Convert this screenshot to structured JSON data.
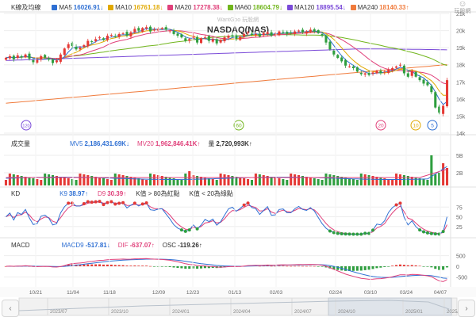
{
  "chart_data": {
    "type": "candlestick",
    "title": "NASDAQ(NAS)",
    "watermark": "WantGoo 玩股網",
    "brand": "玩股網",
    "panels": {
      "price": {
        "label": "K線及均線",
        "ylim": [
          14000,
          21000
        ],
        "yticks": [
          "21k",
          "20k",
          "19k",
          "18k",
          "17k",
          "16k",
          "15k",
          "14k"
        ],
        "ma": [
          {
            "name": "MA5",
            "value": "16026.91",
            "arrow": "↓",
            "color": "#2e6fd3"
          },
          {
            "name": "MA10",
            "value": "16761.18",
            "arrow": "↓",
            "color": "#e0a800"
          },
          {
            "name": "MA20",
            "value": "17278.38",
            "arrow": "↓",
            "color": "#e0407a"
          },
          {
            "name": "MA60",
            "value": "18604.79",
            "arrow": "↓",
            "color": "#71b51c"
          },
          {
            "name": "MA120",
            "value": "18895.54",
            "arrow": "↓",
            "color": "#7a4ad8"
          },
          {
            "name": "MA240",
            "value": "18140.33",
            "arrow": "↑",
            "color": "#f07b3c"
          }
        ],
        "markers": [
          {
            "label": "120",
            "color": "#7a4ad8"
          },
          {
            "label": "60",
            "color": "#71b51c"
          },
          {
            "label": "20",
            "color": "#e0407a"
          },
          {
            "label": "10",
            "color": "#e0a800"
          },
          {
            "label": "5",
            "color": "#2e6fd3"
          }
        ]
      },
      "volume": {
        "label": "成交量",
        "mv5": {
          "name": "MV5",
          "value": "2,186,431.69K",
          "arrow": "↓",
          "color": "#2e6fd3"
        },
        "mv20": {
          "name": "MV20",
          "value": "1,962,846.41K",
          "arrow": "↑",
          "color": "#e0407a"
        },
        "vol": {
          "name": "量",
          "value": "2,720,993K",
          "arrow": "↑",
          "color": "#333333"
        },
        "yticks": [
          "5B",
          "2B"
        ]
      },
      "kd": {
        "label": "KD",
        "k": {
          "name": "K9",
          "value": "38.97",
          "arrow": "↑",
          "color": "#2e6fd3"
        },
        "d": {
          "name": "D9",
          "value": "30.39",
          "arrow": "↑",
          "color": "#e0407a"
        },
        "note_over": "K值 > 80為紅點",
        "note_under": "K值 < 20為綠點",
        "yticks": [
          "75",
          "50",
          "25"
        ]
      },
      "macd": {
        "label": "MACD",
        "macd": {
          "name": "MACD9",
          "value": "-517.81",
          "arrow": "↓",
          "color": "#2e6fd3"
        },
        "dif": {
          "name": "DIF",
          "value": "-637.07",
          "arrow": "↑",
          "color": "#e0407a"
        },
        "osc": {
          "name": "OSC",
          "value": "-119.26",
          "arrow": "↑",
          "color": "#333333"
        },
        "yticks": [
          "500",
          "0",
          "-500"
        ]
      }
    },
    "x_ticks": [
      "10/21",
      "11/04",
      "11/18",
      "12/09",
      "12/23",
      "01/13",
      "02/03",
      "02/24",
      "03/10",
      "03/24",
      "04/07"
    ],
    "nav_ticks": [
      "2023/07",
      "2023/10",
      "2024/01",
      "2024/04",
      "2024/07",
      "2024/10",
      "2025/01",
      "2025/04"
    ],
    "close": [
      18400,
      18500,
      18320,
      18550,
      18440,
      18600,
      18350,
      18150,
      18280,
      18500,
      18420,
      18300,
      18100,
      18250,
      18600,
      18950,
      19200,
      19100,
      18900,
      19000,
      19150,
      19400,
      19350,
      19500,
      19600,
      19450,
      19700,
      19750,
      19650,
      19800,
      19850,
      19700,
      19900,
      20100,
      20000,
      20150,
      20200,
      19950,
      20050,
      20100,
      20150,
      20050,
      20000,
      19800,
      19700,
      19600,
      19400,
      19500,
      19700,
      19300,
      19550,
      19600,
      19400,
      19500,
      19250,
      19450,
      19600,
      19700,
      19650,
      19500,
      19650,
      19800,
      19900,
      19750,
      19800,
      19650,
      19850,
      19900,
      19700,
      19800,
      19950,
      19900,
      19800,
      19850,
      19950,
      20000,
      19900,
      19950,
      20050,
      19950,
      19850,
      19700,
      19300,
      18900,
      18600,
      18400,
      18200,
      17950,
      17900,
      17800,
      17600,
      17450,
      17500,
      17400,
      17550,
      17650,
      17500,
      17600,
      17700,
      17800,
      17900,
      18000,
      17500,
      17300,
      17650,
      17300,
      17100,
      16900,
      16800,
      16400,
      15500,
      15200,
      15600,
      17100
    ]
  },
  "colors": {
    "up": "#e53935",
    "down": "#2e9e3e",
    "grid": "#eeeeee"
  }
}
